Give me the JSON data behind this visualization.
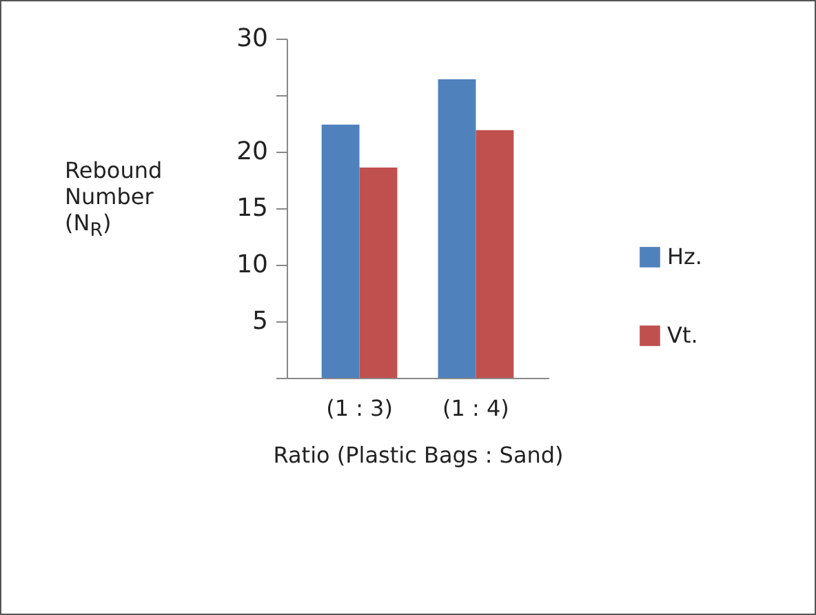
{
  "chart_data": {
    "type": "bar",
    "ylabel": "Rebound Number (N$_{R}$)",
    "xlabel": "Ratio (Plastic Bags : Sand)",
    "categories": [
      "(1 : 3)",
      "(1 : 4)"
    ],
    "series": [
      {
        "name": "Hz.",
        "color": "#4f81bd",
        "values": [
          22.4,
          26.4
        ]
      },
      {
        "name": "Vt.",
        "color": "#c0504d",
        "values": [
          18.6,
          21.9
        ]
      }
    ],
    "ylim": [
      0,
      30
    ],
    "yticks": [
      {
        "value": 0,
        "label": null
      },
      5,
      10,
      15,
      20,
      {
        "value": 25,
        "label": null
      },
      30
    ],
    "legend": "right",
    "grid": false
  }
}
